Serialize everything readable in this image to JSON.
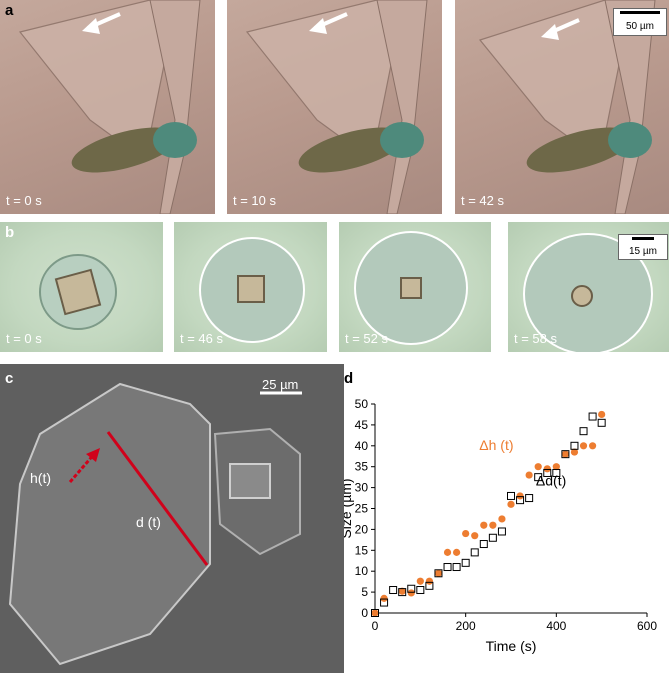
{
  "panel_a": {
    "letter": "a",
    "frames": [
      {
        "label": "t = 0 s"
      },
      {
        "label": "t = 10 s"
      },
      {
        "label": "t = 42 s"
      }
    ],
    "scale_label": "50 µm"
  },
  "panel_b": {
    "letter": "b",
    "frames": [
      {
        "label": "t = 0 s"
      },
      {
        "label": "t = 46 s"
      },
      {
        "label": "t = 52 s"
      },
      {
        "label": "t = 58 s"
      }
    ],
    "scale_label": "15 µm"
  },
  "panel_c": {
    "letter": "c",
    "scale_label": "25 µm",
    "h_label": "h(t)",
    "d_label": "d (t)"
  },
  "panel_d": {
    "letter": "d"
  },
  "chart_data": {
    "type": "scatter",
    "xlabel": "Time (s)",
    "ylabel": "Size (µm)",
    "xlim": [
      0,
      600
    ],
    "ylim": [
      0,
      50
    ],
    "xticks": [
      0,
      200,
      400,
      600
    ],
    "yticks": [
      0,
      5,
      10,
      15,
      20,
      25,
      30,
      35,
      40,
      45,
      50
    ],
    "grid": false,
    "series": [
      {
        "name": "Δh (t)",
        "color": "#ed7d31",
        "marker": "filled-circle",
        "x": [
          0,
          20,
          60,
          80,
          100,
          120,
          140,
          160,
          180,
          200,
          220,
          240,
          260,
          280,
          300,
          320,
          340,
          360,
          380,
          400,
          420,
          440,
          460,
          480,
          500
        ],
        "y": [
          0,
          3.5,
          5.2,
          4.8,
          7.6,
          7.6,
          9.5,
          14.5,
          14.5,
          19.0,
          18.5,
          21.0,
          21.0,
          22.5,
          26.0,
          28.0,
          33.0,
          35.0,
          34.5,
          35.0,
          38.0,
          38.5,
          40.0,
          40.0,
          47.5
        ]
      },
      {
        "name": "Δd(t)",
        "color": "#000000",
        "marker": "open-square",
        "x": [
          0,
          20,
          40,
          60,
          80,
          100,
          120,
          140,
          160,
          180,
          200,
          220,
          240,
          260,
          280,
          300,
          320,
          340,
          360,
          380,
          400,
          420,
          440,
          460,
          480,
          500
        ],
        "y": [
          0,
          2.5,
          5.5,
          5.0,
          5.8,
          5.5,
          6.5,
          9.5,
          11.0,
          11.0,
          12.0,
          14.5,
          16.5,
          18.0,
          19.5,
          28.0,
          27.0,
          27.5,
          32.5,
          33.5,
          33.5,
          38.0,
          40.0,
          43.5,
          47.0,
          45.5
        ]
      }
    ]
  }
}
